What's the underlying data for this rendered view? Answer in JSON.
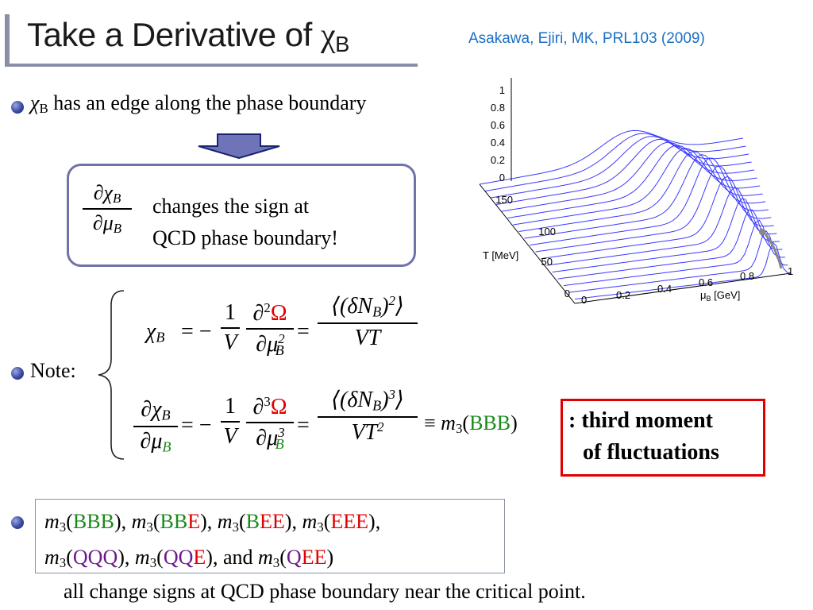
{
  "title": {
    "text": "Take a Derivative of ",
    "chi": "χ",
    "sub": "B"
  },
  "citation": "Asakawa, Ejiri, MK, PRL103 (2009)",
  "bullet1": {
    "chi": "χ",
    "sub": "B",
    "text": " has an edge along the phase boundary"
  },
  "sign_box": {
    "frac_num": "∂χ",
    "frac_num_sub": "B",
    "frac_den": "∂μ",
    "frac_den_sub": "B",
    "line1": "changes the sign at",
    "line2": "QCD phase boundary!"
  },
  "note_label": "Note:",
  "eq1": {
    "lhs": "χ",
    "lhs_sub": "B",
    "eq": "= −",
    "frac1_num": "1",
    "frac1_den": "V",
    "frac2_num": "∂",
    "frac2_num_sup": "2",
    "frac2_num_omega": "Ω",
    "frac2_den": "∂μ",
    "frac2_den_sup": "2",
    "frac2_den_sub": "B",
    "eq2": "=",
    "frac3_num": "⟨(δN",
    "frac3_num_sub": "B",
    "frac3_num_close": ")",
    "frac3_num_sup": "2",
    "frac3_num_end": "⟩",
    "frac3_den": "VT"
  },
  "eq2": {
    "lhs_num": "∂χ",
    "lhs_num_sub": "B",
    "lhs_den": "∂μ",
    "lhs_den_sub": "B",
    "eq": "= −",
    "frac1_num": "1",
    "frac1_den": "V",
    "frac2_num": "∂",
    "frac2_num_sup": "3",
    "frac2_num_omega": "Ω",
    "frac2_den": "∂μ",
    "frac2_den_sup": "3",
    "frac2_den_sub": "B",
    "eq2": "=",
    "frac3_num": "⟨(δN",
    "frac3_num_sub": "B",
    "frac3_num_close": ")",
    "frac3_num_sup": "3",
    "frac3_num_end": "⟩",
    "frac3_den": "VT",
    "frac3_den_sup": "2",
    "equiv": "≡ ",
    "m": "m",
    "m_sub": "3",
    "arg_open": "(",
    "arg": "BBB",
    "arg_close": ")"
  },
  "moment_box": {
    "line1": ": third moment",
    "line2": "of fluctuations"
  },
  "list": {
    "m": "m",
    "sub": "3",
    "items_line1": [
      {
        "parts": [
          [
            "BBB",
            "green"
          ]
        ]
      },
      {
        "parts": [
          [
            "BB",
            "green"
          ],
          [
            "E",
            "red"
          ]
        ]
      },
      {
        "parts": [
          [
            "B",
            "green"
          ],
          [
            "EE",
            "red"
          ]
        ]
      },
      {
        "parts": [
          [
            "EEE",
            "red"
          ]
        ]
      }
    ],
    "items_line2": [
      {
        "parts": [
          [
            "QQQ",
            "purple"
          ]
        ]
      },
      {
        "parts": [
          [
            "QQ",
            "purple"
          ],
          [
            "E",
            "red"
          ]
        ]
      },
      {
        "parts": [
          [
            "Q",
            "purple"
          ],
          [
            "EE",
            "red"
          ]
        ]
      }
    ],
    "sep": ", ",
    "and": "and "
  },
  "footer": "all change signs at QCD phase boundary near the critical point.",
  "plot": {
    "z_ticks": [
      "1",
      "0.8",
      "0.6",
      "0.4",
      "0.2",
      "0"
    ],
    "t_ticks": [
      "150",
      "100",
      "50",
      "0"
    ],
    "t_label": "T [MeV]",
    "mu_ticks": [
      "0",
      "0.2",
      "0.4",
      "0.6",
      "0.8",
      "1"
    ],
    "mu_label_mu": "μ",
    "mu_label_sub": "B",
    "mu_label_unit": " [GeV]",
    "line_color": "#3a3aff",
    "boundary_color": "#888888"
  }
}
